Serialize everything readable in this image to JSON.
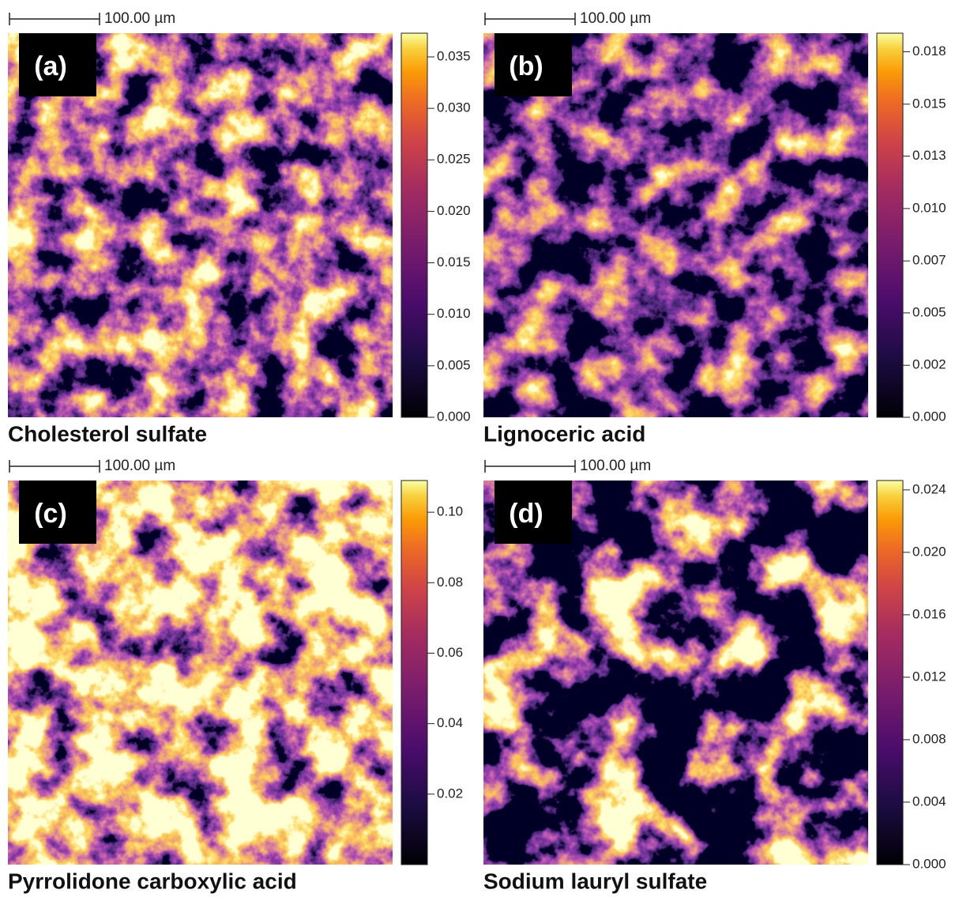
{
  "panels": [
    {
      "label": "(a)",
      "title": "Cholesterol sulfate",
      "scale_bar": "100.00 µm",
      "colorbar": {
        "lim": [
          0,
          0.0373
        ],
        "ticks": [
          {
            "value": 0,
            "label": "0.000"
          },
          {
            "value": 0.005,
            "label": "0.005"
          },
          {
            "value": 0.01,
            "label": "0.010"
          },
          {
            "value": 0.015,
            "label": "0.015"
          },
          {
            "value": 0.02,
            "label": "0.020"
          },
          {
            "value": 0.025,
            "label": "0.025"
          },
          {
            "value": 0.03,
            "label": "0.030"
          },
          {
            "value": 0.035,
            "label": "0.035"
          }
        ]
      }
    },
    {
      "label": "(b)",
      "title": "Lignoceric acid",
      "scale_bar": "100.00 µm",
      "colorbar": {
        "lim": [
          0,
          0.0184
        ],
        "ticks": [
          {
            "value": 0,
            "label": "0.000"
          },
          {
            "value": 0.00249,
            "label": "0.002"
          },
          {
            "value": 0.005,
            "label": "0.005"
          },
          {
            "value": 0.00749,
            "label": "0.007"
          },
          {
            "value": 0.01,
            "label": "0.010"
          },
          {
            "value": 0.01251,
            "label": "0.013"
          },
          {
            "value": 0.015,
            "label": "0.015"
          },
          {
            "value": 0.01751,
            "label": "0.018"
          }
        ]
      }
    },
    {
      "label": "(c)",
      "title": "Pyrrolidone carboxylic acid",
      "scale_bar": "100.00 µm",
      "colorbar": {
        "lim": [
          0,
          0.109
        ],
        "ticks": [
          0.02,
          0.04,
          0.06,
          0.08,
          {
            "value": 0.1,
            "label": "0.10"
          }
        ]
      }
    },
    {
      "label": "(d)",
      "title": "Sodium lauryl sulfate",
      "scale_bar": "100.00 µm",
      "colorbar": {
        "lim": [
          0,
          0.0246
        ],
        "ticks": [
          {
            "value": 0,
            "label": "0.000"
          },
          {
            "value": 0.004,
            "label": "0.004"
          },
          {
            "value": 0.008,
            "label": "0.008"
          },
          {
            "value": 0.012,
            "label": "0.012"
          },
          {
            "value": 0.016,
            "label": "0.016"
          },
          {
            "value": 0.02,
            "label": "0.020"
          },
          {
            "value": 0.024,
            "label": "0.024"
          }
        ]
      }
    }
  ]
}
